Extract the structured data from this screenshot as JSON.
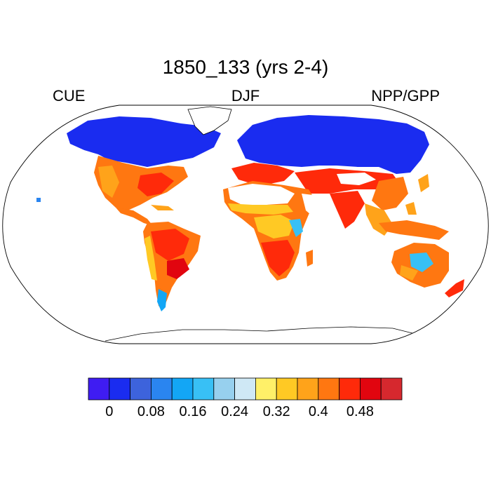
{
  "title": "1850_133 (yrs 2-4)",
  "left_label": "CUE",
  "center_label": "DJF",
  "right_label": "NPP/GPP",
  "map": {
    "projection": "robinson",
    "field": "NPP/GPP",
    "season": "DJF",
    "missing_over": [
      "ocean",
      "antarctica",
      "greenland",
      "sahara-interior",
      "arabian-desert",
      "tibet"
    ]
  },
  "colorbar": {
    "colors": [
      "#3f1cf2",
      "#1a2cf0",
      "#3d63dc",
      "#2a85f0",
      "#13a6f5",
      "#38c0f5",
      "#97d0ee",
      "#cfe8f5",
      "#fff068",
      "#ffc924",
      "#ffa31a",
      "#ff7711",
      "#ff2a0a",
      "#e1050f",
      "#d6282e"
    ],
    "tick_labels": [
      "0",
      "0.08",
      "0.16",
      "0.24",
      "0.32",
      "0.4",
      "0.48"
    ]
  }
}
